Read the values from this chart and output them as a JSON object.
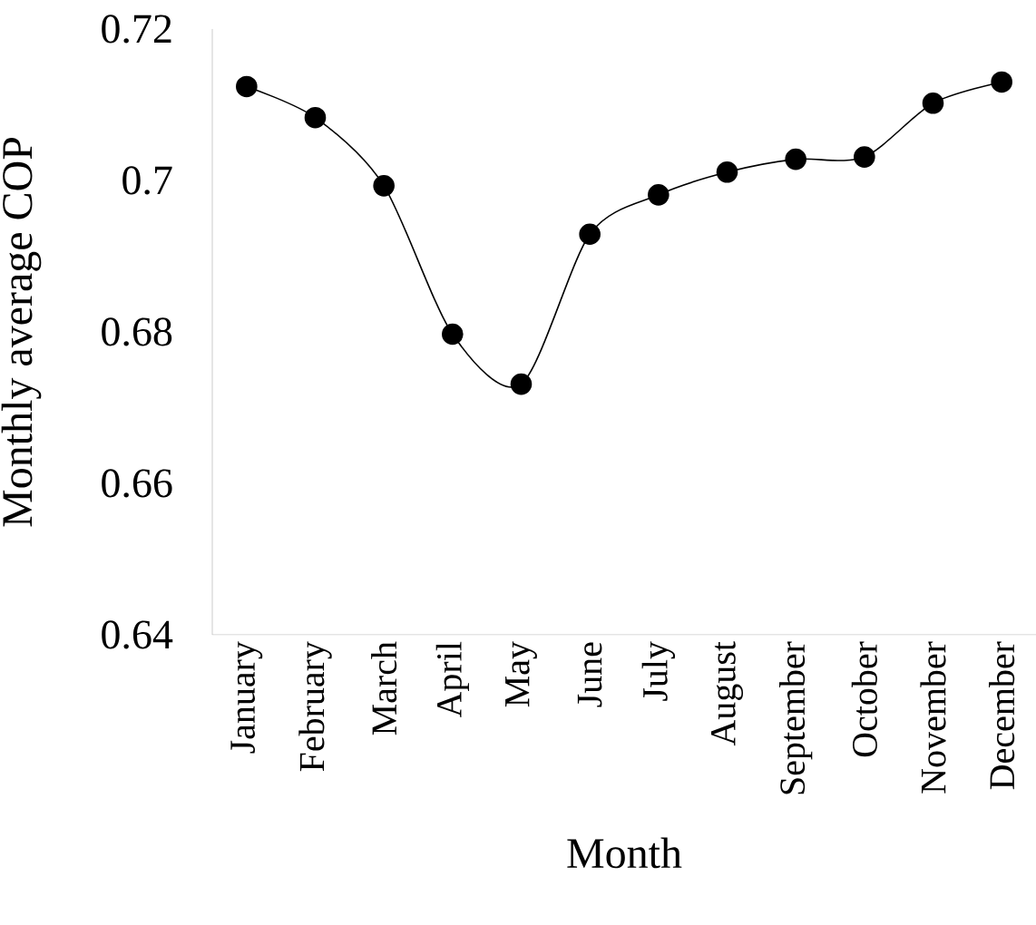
{
  "chart_data": {
    "type": "line",
    "xlabel": "Month",
    "ylabel": "Monthly average COP",
    "categories": [
      "January",
      "February",
      "March",
      "April",
      "May",
      "June",
      "July",
      "August",
      "September",
      "October",
      "November",
      "December"
    ],
    "series": [
      {
        "color": "#000000",
        "values": [
          0.7124,
          0.7083,
          0.6993,
          0.6797,
          0.6731,
          0.6929,
          0.6981,
          0.7011,
          0.7028,
          0.7031,
          0.7102,
          0.713
        ]
      }
    ],
    "ylim": [
      0.64,
      0.72
    ],
    "yticks": [
      0.64,
      0.66,
      0.68,
      0.7,
      0.72
    ],
    "marker": "circle",
    "line_style": "solid",
    "grid": false
  }
}
